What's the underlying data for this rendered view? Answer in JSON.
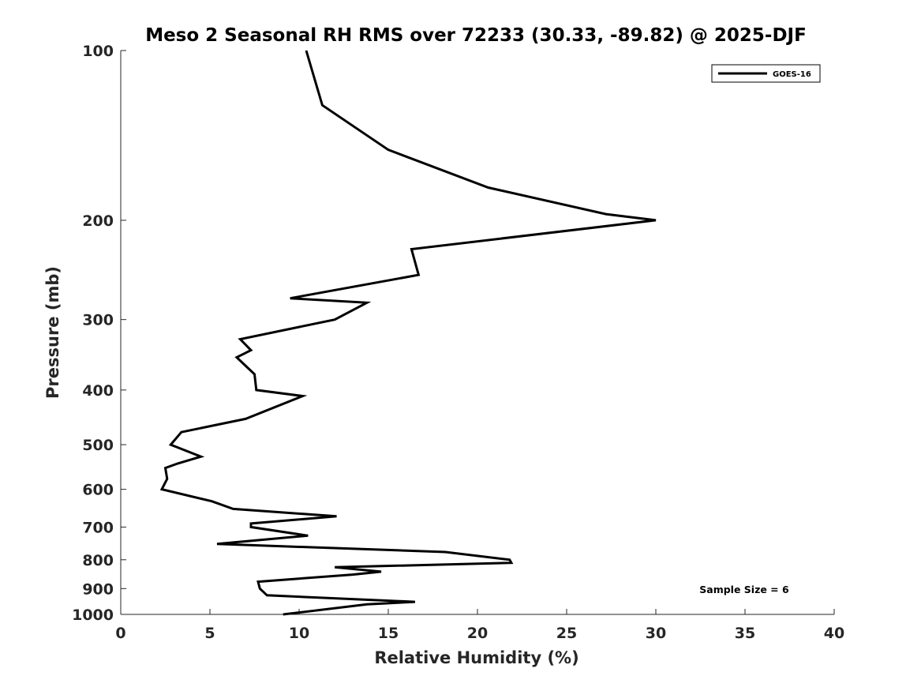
{
  "chart_data": {
    "type": "line",
    "title": "Meso 2 Seasonal RH RMS over 72233 (30.33, -89.82) @ 2025-DJF",
    "xlabel": "Relative Humidity (%)",
    "ylabel": "Pressure (mb)",
    "xlim": [
      0,
      40
    ],
    "ylim": [
      1000,
      100
    ],
    "y_scale": "log",
    "y_direction": "reversed",
    "x_ticks": [
      0,
      5,
      10,
      15,
      20,
      25,
      30,
      35,
      40
    ],
    "y_ticks": [
      100,
      200,
      300,
      400,
      500,
      600,
      700,
      800,
      900,
      1000
    ],
    "grid": false,
    "legend_position": "top-right",
    "annotation": "Sample Size = 6",
    "series": [
      {
        "name": "GOES-16",
        "color": "#000000",
        "points": [
          [
            10.4,
            100
          ],
          [
            11.3,
            125
          ],
          [
            15.0,
            150
          ],
          [
            20.6,
            175
          ],
          [
            27.2,
            195
          ],
          [
            30.0,
            200
          ],
          [
            16.3,
            225
          ],
          [
            16.7,
            250
          ],
          [
            9.5,
            275
          ],
          [
            13.8,
            280
          ],
          [
            12.0,
            300
          ],
          [
            6.7,
            325
          ],
          [
            7.3,
            340
          ],
          [
            6.5,
            350
          ],
          [
            7.5,
            375
          ],
          [
            7.6,
            400
          ],
          [
            10.2,
            410
          ],
          [
            7.0,
            450
          ],
          [
            3.4,
            475
          ],
          [
            2.8,
            500
          ],
          [
            4.5,
            525
          ],
          [
            3.2,
            540
          ],
          [
            2.5,
            550
          ],
          [
            2.6,
            575
          ],
          [
            2.3,
            600
          ],
          [
            5.1,
            630
          ],
          [
            6.3,
            650
          ],
          [
            12.1,
            670
          ],
          [
            7.3,
            690
          ],
          [
            7.3,
            700
          ],
          [
            10.5,
            725
          ],
          [
            5.4,
            750
          ],
          [
            18.2,
            775
          ],
          [
            21.8,
            800
          ],
          [
            21.9,
            810
          ],
          [
            12.0,
            825
          ],
          [
            14.6,
            840
          ],
          [
            13.0,
            850
          ],
          [
            7.7,
            875
          ],
          [
            7.8,
            900
          ],
          [
            8.2,
            925
          ],
          [
            16.5,
            950
          ],
          [
            13.8,
            960
          ],
          [
            9.1,
            1000
          ]
        ]
      }
    ]
  }
}
